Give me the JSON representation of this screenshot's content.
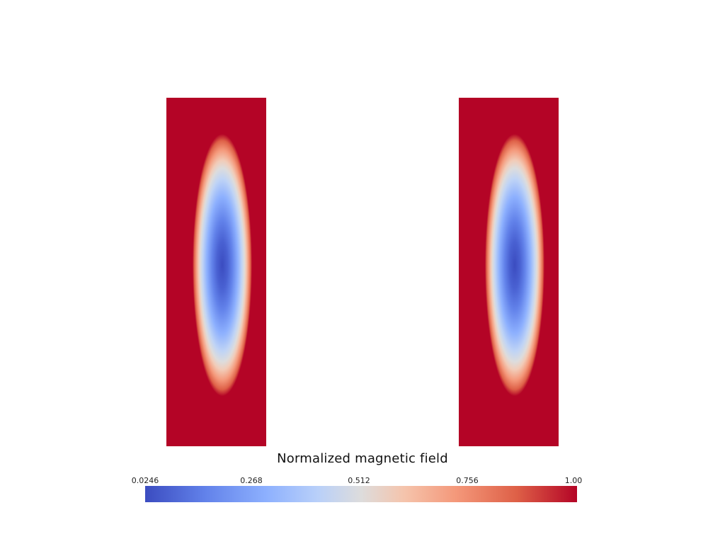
{
  "colorbar": {
    "title": "Normalized magnetic field",
    "ticks": [
      "0.0246",
      "0.268",
      "0.512",
      "0.756",
      "1.00"
    ],
    "min_color": "#3b4cc0",
    "mid_color": "#dddcdc",
    "max_color": "#b40426",
    "colormap": "coolwarm"
  }
}
